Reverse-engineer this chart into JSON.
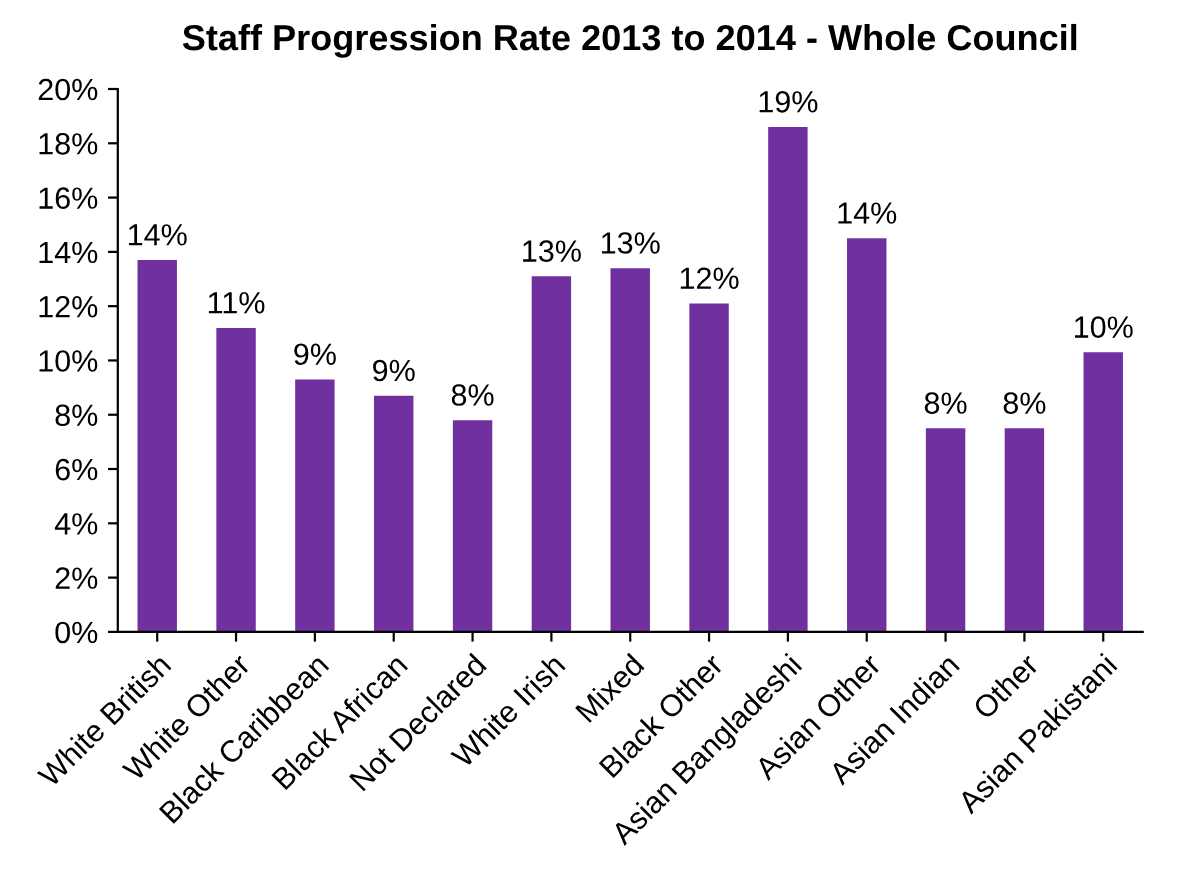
{
  "chart_data": {
    "type": "bar",
    "title": "Staff Progression Rate 2013 to 2014 - Whole Council",
    "categories": [
      "White British",
      "White Other",
      "Black Caribbean",
      "Black African",
      "Not Declared",
      "White Irish",
      "Mixed",
      "Black Other",
      "Asian Bangladeshi",
      "Asian Other",
      "Asian Indian",
      "Other",
      "Asian Pakistani"
    ],
    "values": [
      13.7,
      11.2,
      9.3,
      8.7,
      7.8,
      13.1,
      13.4,
      12.1,
      18.6,
      14.5,
      7.5,
      7.5,
      10.3
    ],
    "value_labels": [
      "14%",
      "11%",
      "9%",
      "9%",
      "8%",
      "13%",
      "13%",
      "12%",
      "19%",
      "14%",
      "8%",
      "8%",
      "10%"
    ],
    "color": "#7030a0",
    "ylim": [
      0,
      20
    ],
    "yticks": [
      {
        "value": 0,
        "label": "0%"
      },
      {
        "value": 2,
        "label": "2%"
      },
      {
        "value": 4,
        "label": "4%"
      },
      {
        "value": 6,
        "label": "6%"
      },
      {
        "value": 8,
        "label": "8%"
      },
      {
        "value": 10,
        "label": "10%"
      },
      {
        "value": 12,
        "label": "12%"
      },
      {
        "value": 14,
        "label": "14%"
      },
      {
        "value": 16,
        "label": "16%"
      },
      {
        "value": 18,
        "label": "18%"
      },
      {
        "value": 20,
        "label": "20%"
      }
    ],
    "grid": false,
    "legend": false
  }
}
